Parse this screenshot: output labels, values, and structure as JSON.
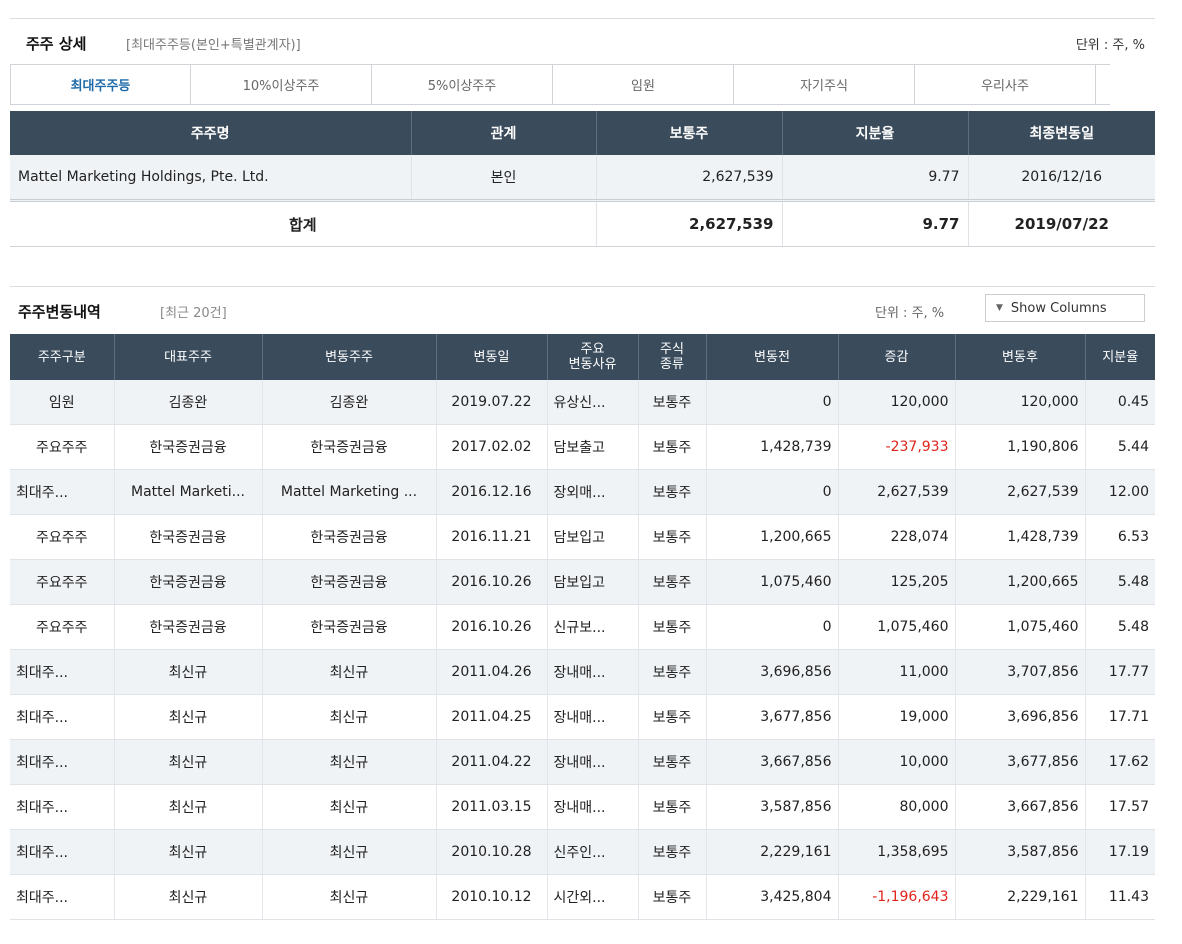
{
  "detail": {
    "title": "주주 상세",
    "subtitle": "[최대주주등(본인+특별관계자)]",
    "unit": "단위 : 주, %",
    "tabs": [
      {
        "label": "최대주주등"
      },
      {
        "label": "10%이상주주"
      },
      {
        "label": "5%이상주주"
      },
      {
        "label": "임원"
      },
      {
        "label": "자기주식"
      },
      {
        "label": "우리사주"
      }
    ],
    "columns": [
      "주주명",
      "관계",
      "보통주",
      "지분율",
      "최종변동일"
    ],
    "rows": [
      {
        "name": "Mattel Marketing Holdings, Pte. Ltd.",
        "relation": "본인",
        "common": "2,627,539",
        "ratio": "9.77",
        "date": "2016/12/16"
      }
    ],
    "total": {
      "label": "합계",
      "common": "2,627,539",
      "ratio": "9.77",
      "date": "2019/07/22"
    }
  },
  "history": {
    "title": "주주변동내역",
    "subtitle": "[최근 20건]",
    "unit": "단위 : 주, %",
    "show_columns": "Show Columns",
    "columns": [
      "주주구분",
      "대표주주",
      "변동주주",
      "변동일",
      "주요\n변동사유",
      "주식\n종류",
      "변동전",
      "증감",
      "변동후",
      "지분율"
    ],
    "rows": [
      {
        "type": "임원",
        "rep": "김종완",
        "holder": "김종완",
        "date": "2019.07.22",
        "reason": "유상신...",
        "kind": "보통주",
        "before": "0",
        "change": "120,000",
        "after": "120,000",
        "ratio": "0.45"
      },
      {
        "type": "주요주주",
        "rep": "한국증권금융",
        "holder": "한국증권금융",
        "date": "2017.02.02",
        "reason": "담보출고",
        "kind": "보통주",
        "before": "1,428,739",
        "change": "-237,933",
        "after": "1,190,806",
        "ratio": "5.44"
      },
      {
        "type": "최대주...",
        "rep": "Mattel Marketi...",
        "holder": "Mattel Marketing ...",
        "date": "2016.12.16",
        "reason": "장외매...",
        "kind": "보통주",
        "before": "0",
        "change": "2,627,539",
        "after": "2,627,539",
        "ratio": "12.00"
      },
      {
        "type": "주요주주",
        "rep": "한국증권금융",
        "holder": "한국증권금융",
        "date": "2016.11.21",
        "reason": "담보입고",
        "kind": "보통주",
        "before": "1,200,665",
        "change": "228,074",
        "after": "1,428,739",
        "ratio": "6.53"
      },
      {
        "type": "주요주주",
        "rep": "한국증권금융",
        "holder": "한국증권금융",
        "date": "2016.10.26",
        "reason": "담보입고",
        "kind": "보통주",
        "before": "1,075,460",
        "change": "125,205",
        "after": "1,200,665",
        "ratio": "5.48"
      },
      {
        "type": "주요주주",
        "rep": "한국증권금융",
        "holder": "한국증권금융",
        "date": "2016.10.26",
        "reason": "신규보...",
        "kind": "보통주",
        "before": "0",
        "change": "1,075,460",
        "after": "1,075,460",
        "ratio": "5.48"
      },
      {
        "type": "최대주...",
        "rep": "최신규",
        "holder": "최신규",
        "date": "2011.04.26",
        "reason": "장내매...",
        "kind": "보통주",
        "before": "3,696,856",
        "change": "11,000",
        "after": "3,707,856",
        "ratio": "17.77"
      },
      {
        "type": "최대주...",
        "rep": "최신규",
        "holder": "최신규",
        "date": "2011.04.25",
        "reason": "장내매...",
        "kind": "보통주",
        "before": "3,677,856",
        "change": "19,000",
        "after": "3,696,856",
        "ratio": "17.71"
      },
      {
        "type": "최대주...",
        "rep": "최신규",
        "holder": "최신규",
        "date": "2011.04.22",
        "reason": "장내매...",
        "kind": "보통주",
        "before": "3,667,856",
        "change": "10,000",
        "after": "3,677,856",
        "ratio": "17.62"
      },
      {
        "type": "최대주...",
        "rep": "최신규",
        "holder": "최신규",
        "date": "2011.03.15",
        "reason": "장내매...",
        "kind": "보통주",
        "before": "3,587,856",
        "change": "80,000",
        "after": "3,667,856",
        "ratio": "17.57"
      },
      {
        "type": "최대주...",
        "rep": "최신규",
        "holder": "최신규",
        "date": "2010.10.28",
        "reason": "신주인...",
        "kind": "보통주",
        "before": "2,229,161",
        "change": "1,358,695",
        "after": "3,587,856",
        "ratio": "17.19"
      },
      {
        "type": "최대주...",
        "rep": "최신규",
        "holder": "최신규",
        "date": "2010.10.12",
        "reason": "시간외...",
        "kind": "보통주",
        "before": "3,425,804",
        "change": "-1,196,643",
        "after": "2,229,161",
        "ratio": "11.43"
      }
    ]
  },
  "colors": {
    "header_bg": "#3a4b5c",
    "active_tab": "#1e6aa8",
    "negative": "#e0241b",
    "row_alt": "#f0f3f6"
  }
}
